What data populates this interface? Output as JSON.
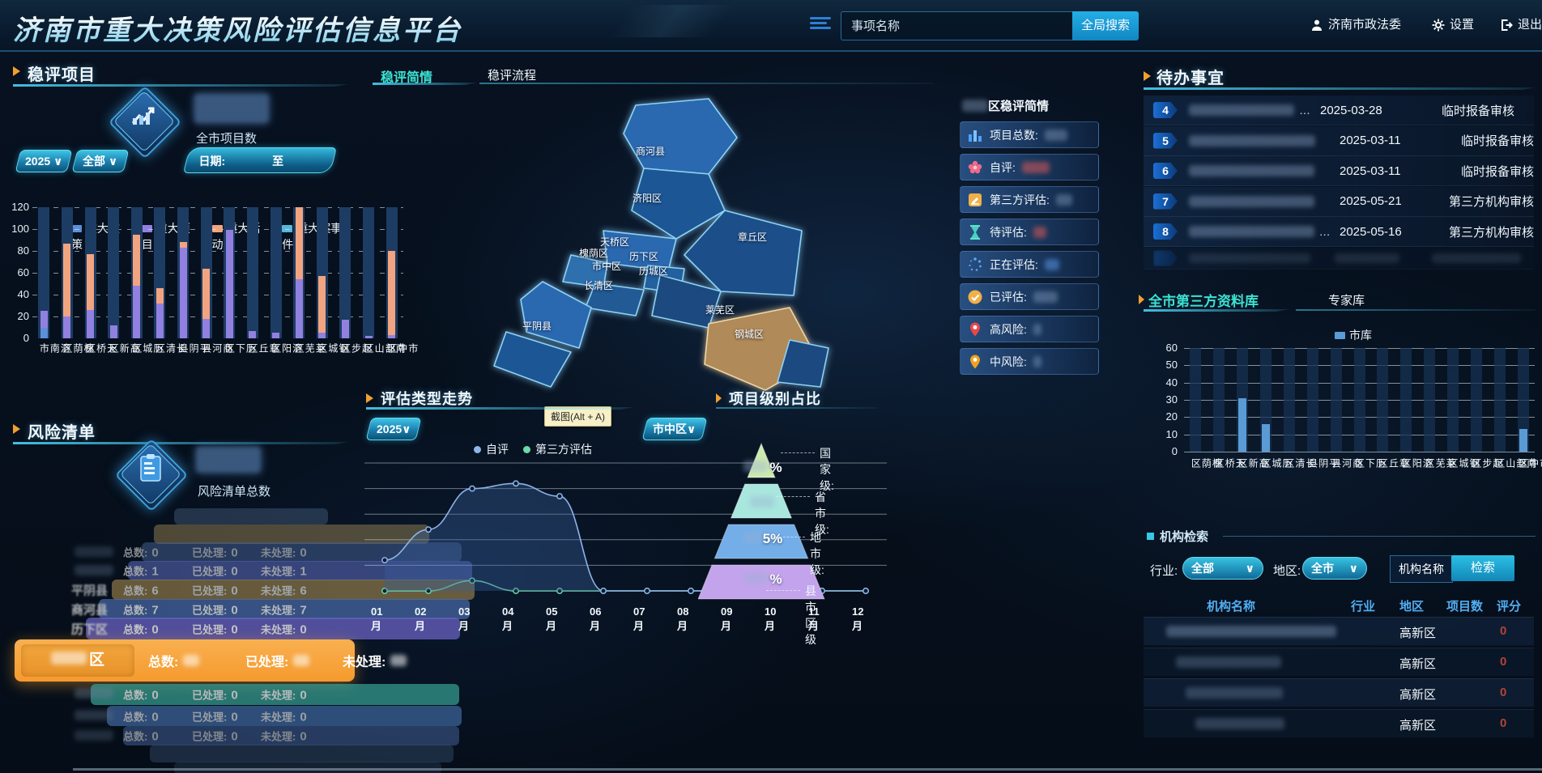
{
  "header": {
    "title": "济南市重大决策风险评估信息平台",
    "search": {
      "placeholder": "事项名称",
      "button": "全局搜索"
    },
    "user": "济南市政法委",
    "settings": "设置",
    "logout": "退出"
  },
  "project_panel": {
    "title": "稳评项目",
    "stat_label": "全市项目数",
    "year": "2025",
    "scope": "全部",
    "date_label": "日期:",
    "date_sep": "至"
  },
  "risk_panel": {
    "title": "风险清单",
    "stat_label": "风险清单总数",
    "col_total": "总数:",
    "col_done": "已处理:",
    "col_pending": "未处理:",
    "rows": [
      {
        "name": "",
        "total": "",
        "done": "",
        "pending": ""
      },
      {
        "name": "",
        "total": "",
        "done": "",
        "pending": ""
      },
      {
        "name": "",
        "total": "0",
        "done": "0",
        "pending": "0"
      },
      {
        "name": "",
        "total": "1",
        "done": "0",
        "pending": "1"
      },
      {
        "name": "平阴县",
        "total": "6",
        "done": "0",
        "pending": "6"
      },
      {
        "name": "商河县",
        "total": "7",
        "done": "0",
        "pending": "7"
      },
      {
        "name": "历下区",
        "total": "0",
        "done": "0",
        "pending": "0"
      },
      {
        "name": "区",
        "total": "",
        "done": "",
        "pending": ""
      },
      {
        "name": "",
        "total": "0",
        "done": "0",
        "pending": "0"
      },
      {
        "name": "",
        "total": "0",
        "done": "0",
        "pending": "0"
      },
      {
        "name": "",
        "total": "0",
        "done": "0",
        "pending": "0"
      },
      {
        "name": "",
        "total": "",
        "done": "",
        "pending": ""
      },
      {
        "name": "",
        "total": "",
        "done": "",
        "pending": ""
      }
    ]
  },
  "map": {
    "tabs": [
      {
        "label": "稳评简情"
      },
      {
        "label": "稳评流程"
      }
    ],
    "districts": [
      "商河县",
      "济阳区",
      "天桥区",
      "章丘区",
      "槐荫区",
      "历下区",
      "市中区",
      "历城区",
      "长清区",
      "平阴县",
      "莱芜区",
      "钢城区"
    ],
    "tooltip": "截图(Alt + A)"
  },
  "brief": {
    "title_suffix": "区稳评简情",
    "items": [
      {
        "icon": "bar-chart-icon",
        "label": "项目总数:"
      },
      {
        "icon": "flower-icon",
        "label": "自评:"
      },
      {
        "icon": "edit-note-icon",
        "label": "第三方评估:"
      },
      {
        "icon": "hourglass-icon",
        "label": "待评估:"
      },
      {
        "icon": "loading-icon",
        "label": "正在评估:"
      },
      {
        "icon": "check-circle-icon",
        "label": "已评估:"
      },
      {
        "icon": "pin-red-icon",
        "label": "高风险:"
      },
      {
        "icon": "pin-yellow-icon",
        "label": "中风险:"
      }
    ]
  },
  "trend_panel": {
    "title": "评估类型走势",
    "year": "2025",
    "district": "市中区"
  },
  "pyramid_panel": {
    "title": "项目级别占比",
    "labels": [
      "国家级:",
      "省市级:",
      "地市级:",
      "县市区级"
    ],
    "pct_visible": [
      "%",
      "",
      "5%",
      "%"
    ]
  },
  "todo": {
    "title": "待办事宜",
    "rows": [
      {
        "num": "4",
        "date": "2025-03-28",
        "status": "临时报备审核",
        "ellipsis": "…"
      },
      {
        "num": "5",
        "date": "2025-03-11",
        "status": "临时报备审核",
        "ellipsis": ""
      },
      {
        "num": "6",
        "date": "2025-03-11",
        "status": "临时报备审核",
        "ellipsis": ""
      },
      {
        "num": "7",
        "date": "2025-05-21",
        "status": "第三方机构审核",
        "ellipsis": ""
      },
      {
        "num": "8",
        "date": "2025-05-16",
        "status": "第三方机构审核",
        "ellipsis": "…"
      }
    ]
  },
  "library": {
    "tabs": [
      {
        "label": "全市第三方资料库"
      },
      {
        "label": "专家库"
      }
    ],
    "legend": "市库"
  },
  "org_search": {
    "title": "机构检索",
    "industry_label": "行业:",
    "industry_value": "全部",
    "region_label": "地区:",
    "region_value": "全市",
    "name_button": "机构名称",
    "search_button": "检索",
    "headers": [
      "机构名称",
      "行业",
      "地区",
      "项目数",
      "评分"
    ],
    "rows": [
      {
        "region": "高新区",
        "score": "0"
      },
      {
        "region": "高新区",
        "score": "0"
      },
      {
        "region": "高新区",
        "score": "0"
      },
      {
        "region": "高新区",
        "score": "0"
      }
    ]
  },
  "colors": {
    "accent_cyan": "#2fd8e8",
    "tab_active": "#3ce2d2",
    "score_red": "#b04438",
    "highlight_orange": "#f7a63c"
  },
  "chart_data": [
    {
      "id": "district-stacked-bar",
      "type": "bar",
      "stacked": true,
      "categories": [
        "济南市",
        "槐荫区",
        "天桥区",
        "高新区",
        "历城区",
        "长清区",
        "平阴县",
        "商河县",
        "历下区",
        "章丘区",
        "济阳区",
        "莱芜区",
        "钢城区",
        "起步区",
        "南部山区",
        "市中区"
      ],
      "series": [
        {
          "name": "重大政策",
          "color": "#5b8fd9",
          "values": [
            10,
            0,
            0,
            0,
            0,
            0,
            0,
            0,
            0,
            0,
            0,
            0,
            0,
            0,
            0,
            0
          ]
        },
        {
          "name": "重大项目",
          "color": "#9180e0",
          "values": [
            15,
            20,
            26,
            12,
            48,
            32,
            83,
            18,
            99,
            7,
            5,
            54,
            5,
            17,
            2,
            3
          ]
        },
        {
          "name": "重大活动",
          "color": "#f2a480",
          "values": [
            0,
            67,
            51,
            0,
            47,
            14,
            5,
            46,
            0,
            0,
            0,
            70,
            52,
            0,
            0,
            77
          ]
        },
        {
          "name": "重大案事件",
          "color": "#57b6d9",
          "values": [
            0,
            0,
            0,
            0,
            0,
            0,
            0,
            0,
            0,
            0,
            0,
            0,
            0,
            0,
            0,
            0
          ]
        }
      ],
      "ylim": [
        0,
        120
      ],
      "yticks": [
        0,
        20,
        40,
        60,
        80,
        100,
        120
      ],
      "grid": "dashed"
    },
    {
      "id": "eval-type-trend",
      "type": "line",
      "x": [
        "01月",
        "02月",
        "03月",
        "04月",
        "05月",
        "06月",
        "07月",
        "08月",
        "09月",
        "10月",
        "11月",
        "12月"
      ],
      "series": [
        {
          "name": "自评",
          "color": "#8fb4e8",
          "values": [
            1.2,
            2.4,
            4.0,
            4.2,
            3.7,
            0,
            0,
            0,
            0,
            0,
            0,
            0
          ],
          "area": true
        },
        {
          "name": "第三方评估",
          "color": "#6fd8a8",
          "values": [
            0,
            0,
            0.4,
            0,
            0,
            0,
            0,
            0,
            0,
            0,
            0,
            0
          ],
          "area": false
        }
      ],
      "ylim": [
        0,
        5
      ],
      "grid": "solid",
      "legend_position": "top"
    },
    {
      "id": "project-level-pyramid",
      "type": "pyramid",
      "levels": [
        {
          "label": "国家级",
          "color": "#cdeab2"
        },
        {
          "label": "省市级",
          "color": "#a9e6de"
        },
        {
          "label": "地市级",
          "color": "#74aee8"
        },
        {
          "label": "县市区级",
          "color": "#c3a4ec"
        }
      ]
    },
    {
      "id": "third-party-library-bar",
      "type": "bar",
      "stacked": false,
      "categories": [
        "槐荫区",
        "天桥区",
        "高新区",
        "历城区",
        "长清区",
        "平阴县",
        "商河县",
        "历下区",
        "章丘区",
        "济阳区",
        "莱芜区",
        "钢城区",
        "起步区",
        "南部山区",
        "市中区"
      ],
      "series": [
        {
          "name": "市库",
          "color": "#5b9bd5",
          "values": [
            0,
            0,
            31,
            16,
            0,
            0,
            0,
            0,
            0,
            0,
            0,
            0,
            0,
            0,
            13
          ]
        }
      ],
      "ylim": [
        0,
        60
      ],
      "yticks": [
        0,
        10,
        20,
        30,
        40,
        50,
        60
      ],
      "grid": "solid"
    }
  ]
}
